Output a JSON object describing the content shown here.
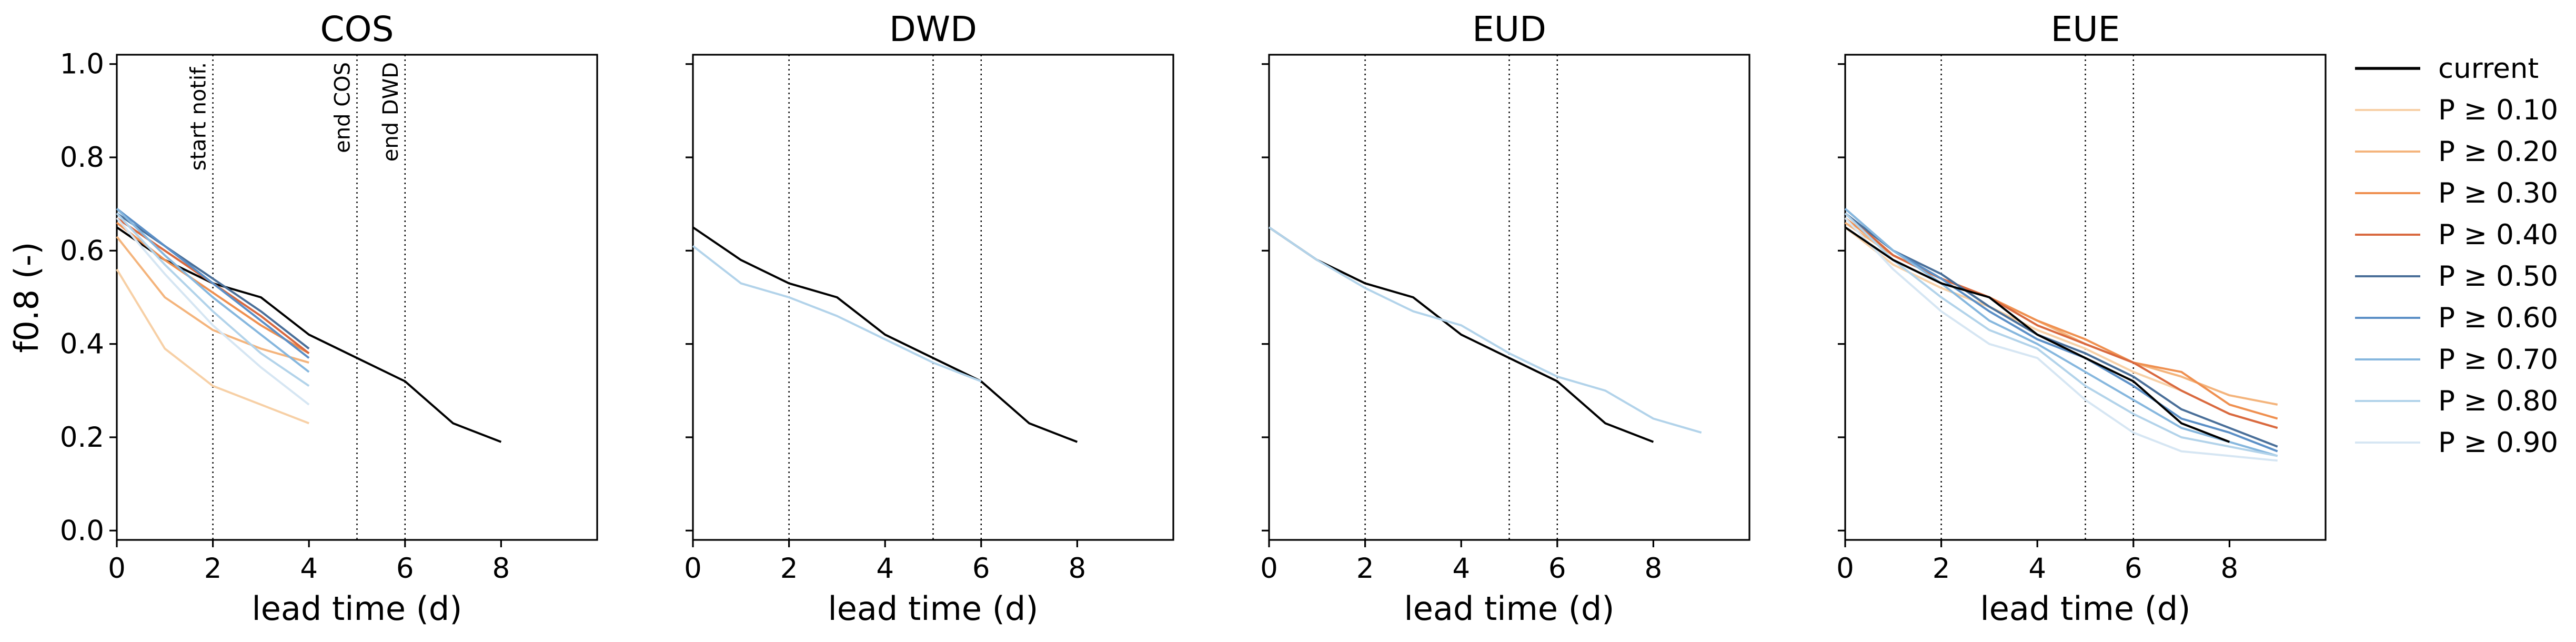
{
  "chart_data": {
    "type": "line",
    "ylabel": "f0.8 (-)",
    "xlabel": "lead time (d)",
    "xlim": [
      0,
      10
    ],
    "ylim": [
      -0.02,
      1.02
    ],
    "xticks": [
      "0",
      "2",
      "4",
      "6",
      "8"
    ],
    "yticks": [
      "0.0",
      "0.2",
      "0.4",
      "0.6",
      "0.8",
      "1.0"
    ],
    "grid": false,
    "legend_placement": "right, outside panels",
    "vertical_lines": [
      {
        "x": 2,
        "label": "start notif."
      },
      {
        "x": 5,
        "label": "end COS"
      },
      {
        "x": 6,
        "label": "end DWD"
      }
    ],
    "series_styles": [
      {
        "name": "current",
        "color": "#000000"
      },
      {
        "name": "P ≥ 0.10",
        "color": "#f7d0a6"
      },
      {
        "name": "P ≥ 0.20",
        "color": "#f4b47c"
      },
      {
        "name": "P ≥ 0.30",
        "color": "#ef9050"
      },
      {
        "name": "P ≥ 0.40",
        "color": "#d9693f"
      },
      {
        "name": "P ≥ 0.50",
        "color": "#4a6f99"
      },
      {
        "name": "P ≥ 0.60",
        "color": "#5b8fc6"
      },
      {
        "name": "P ≥ 0.70",
        "color": "#86b7de"
      },
      {
        "name": "P ≥ 0.80",
        "color": "#b2d3ea"
      },
      {
        "name": "P ≥ 0.90",
        "color": "#d6e6f3"
      }
    ],
    "panels": [
      {
        "title": "COS",
        "vline_labels": true,
        "series": [
          {
            "name": "current",
            "x": [
              0,
              1,
              2,
              3,
              4,
              5,
              6,
              7,
              8
            ],
            "y": [
              0.65,
              0.58,
              0.53,
              0.5,
              0.42,
              0.37,
              0.32,
              0.23,
              0.19
            ]
          },
          {
            "name": "P ≥ 0.10",
            "x": [
              0,
              1,
              2,
              3,
              4
            ],
            "y": [
              0.56,
              0.39,
              0.31,
              0.27,
              0.23
            ]
          },
          {
            "name": "P ≥ 0.20",
            "x": [
              0,
              1,
              2,
              3,
              4
            ],
            "y": [
              0.63,
              0.5,
              0.43,
              0.39,
              0.36
            ]
          },
          {
            "name": "P ≥ 0.30",
            "x": [
              0,
              1,
              2,
              3,
              4
            ],
            "y": [
              0.66,
              0.58,
              0.51,
              0.44,
              0.38
            ]
          },
          {
            "name": "P ≥ 0.40",
            "x": [
              0,
              1,
              2,
              3,
              4
            ],
            "y": [
              0.67,
              0.6,
              0.53,
              0.46,
              0.38
            ]
          },
          {
            "name": "P ≥ 0.50",
            "x": [
              0,
              1,
              2,
              3,
              4
            ],
            "y": [
              0.68,
              0.61,
              0.54,
              0.47,
              0.39
            ]
          },
          {
            "name": "P ≥ 0.60",
            "x": [
              0,
              1,
              2,
              3,
              4
            ],
            "y": [
              0.69,
              0.61,
              0.53,
              0.45,
              0.37
            ]
          },
          {
            "name": "P ≥ 0.70",
            "x": [
              0,
              1,
              2,
              3,
              4
            ],
            "y": [
              0.69,
              0.59,
              0.5,
              0.42,
              0.34
            ]
          },
          {
            "name": "P ≥ 0.80",
            "x": [
              0,
              1,
              2,
              3,
              4
            ],
            "y": [
              0.68,
              0.57,
              0.47,
              0.38,
              0.31
            ]
          },
          {
            "name": "P ≥ 0.90",
            "x": [
              0,
              1,
              2,
              3,
              4
            ],
            "y": [
              0.67,
              0.55,
              0.44,
              0.35,
              0.27
            ]
          }
        ]
      },
      {
        "title": "DWD",
        "vline_labels": false,
        "series": [
          {
            "name": "current",
            "x": [
              0,
              1,
              2,
              3,
              4,
              5,
              6,
              7,
              8
            ],
            "y": [
              0.65,
              0.58,
              0.53,
              0.5,
              0.42,
              0.37,
              0.32,
              0.23,
              0.19
            ]
          },
          {
            "name": "P ≥ 0.80",
            "x": [
              0,
              1,
              2,
              3,
              4,
              5,
              6
            ],
            "y": [
              0.61,
              0.53,
              0.5,
              0.46,
              0.41,
              0.36,
              0.32
            ]
          }
        ]
      },
      {
        "title": "EUD",
        "vline_labels": false,
        "series": [
          {
            "name": "current",
            "x": [
              0,
              1,
              2,
              3,
              4,
              5,
              6,
              7,
              8
            ],
            "y": [
              0.65,
              0.58,
              0.53,
              0.5,
              0.42,
              0.37,
              0.32,
              0.23,
              0.19
            ]
          },
          {
            "name": "P ≥ 0.80",
            "x": [
              0,
              1,
              2,
              3,
              4,
              5,
              6,
              7,
              8,
              9
            ],
            "y": [
              0.65,
              0.58,
              0.52,
              0.47,
              0.44,
              0.38,
              0.33,
              0.3,
              0.24,
              0.21
            ]
          }
        ]
      },
      {
        "title": "EUE",
        "vline_labels": false,
        "series": [
          {
            "name": "P ≥ 0.10",
            "x": [
              0,
              1,
              2,
              3,
              4,
              5,
              6,
              7,
              8,
              9
            ],
            "y": [
              0.65,
              0.57,
              0.52,
              0.48,
              0.43,
              0.39,
              0.34,
              0.3,
              0.25,
              0.22
            ]
          },
          {
            "name": "P ≥ 0.20",
            "x": [
              0,
              1,
              2,
              3,
              4,
              5,
              6,
              7,
              8,
              9
            ],
            "y": [
              0.66,
              0.59,
              0.54,
              0.5,
              0.45,
              0.4,
              0.36,
              0.33,
              0.29,
              0.27
            ]
          },
          {
            "name": "P ≥ 0.30",
            "x": [
              0,
              1,
              2,
              3,
              4,
              5,
              6,
              7,
              8,
              9
            ],
            "y": [
              0.67,
              0.59,
              0.54,
              0.5,
              0.45,
              0.41,
              0.36,
              0.34,
              0.27,
              0.24
            ]
          },
          {
            "name": "P ≥ 0.40",
            "x": [
              0,
              1,
              2,
              3,
              4,
              5,
              6,
              7,
              8,
              9
            ],
            "y": [
              0.68,
              0.59,
              0.54,
              0.5,
              0.44,
              0.4,
              0.36,
              0.3,
              0.25,
              0.22
            ]
          },
          {
            "name": "P ≥ 0.50",
            "x": [
              0,
              1,
              2,
              3,
              4,
              5,
              6,
              7,
              8,
              9
            ],
            "y": [
              0.68,
              0.6,
              0.55,
              0.48,
              0.42,
              0.38,
              0.33,
              0.26,
              0.22,
              0.18
            ]
          },
          {
            "name": "P ≥ 0.60",
            "x": [
              0,
              1,
              2,
              3,
              4,
              5,
              6,
              7,
              8,
              9
            ],
            "y": [
              0.69,
              0.6,
              0.54,
              0.47,
              0.41,
              0.37,
              0.31,
              0.24,
              0.21,
              0.17
            ]
          },
          {
            "name": "P ≥ 0.70",
            "x": [
              0,
              1,
              2,
              3,
              4,
              5,
              6,
              7,
              8,
              9
            ],
            "y": [
              0.69,
              0.6,
              0.53,
              0.45,
              0.4,
              0.34,
              0.28,
              0.22,
              0.19,
              0.16
            ]
          },
          {
            "name": "P ≥ 0.80",
            "x": [
              0,
              1,
              2,
              3,
              4,
              5,
              6,
              7,
              8,
              9
            ],
            "y": [
              0.68,
              0.58,
              0.5,
              0.43,
              0.39,
              0.31,
              0.25,
              0.2,
              0.18,
              0.16
            ]
          },
          {
            "name": "P ≥ 0.90",
            "x": [
              0,
              1,
              2,
              3,
              4,
              5,
              6,
              7,
              8,
              9
            ],
            "y": [
              0.67,
              0.56,
              0.47,
              0.4,
              0.37,
              0.28,
              0.21,
              0.17,
              0.16,
              0.15
            ]
          },
          {
            "name": "current",
            "x": [
              0,
              1,
              2,
              3,
              4,
              5,
              6,
              7,
              8
            ],
            "y": [
              0.65,
              0.58,
              0.53,
              0.5,
              0.42,
              0.37,
              0.32,
              0.23,
              0.19
            ]
          }
        ]
      }
    ]
  }
}
